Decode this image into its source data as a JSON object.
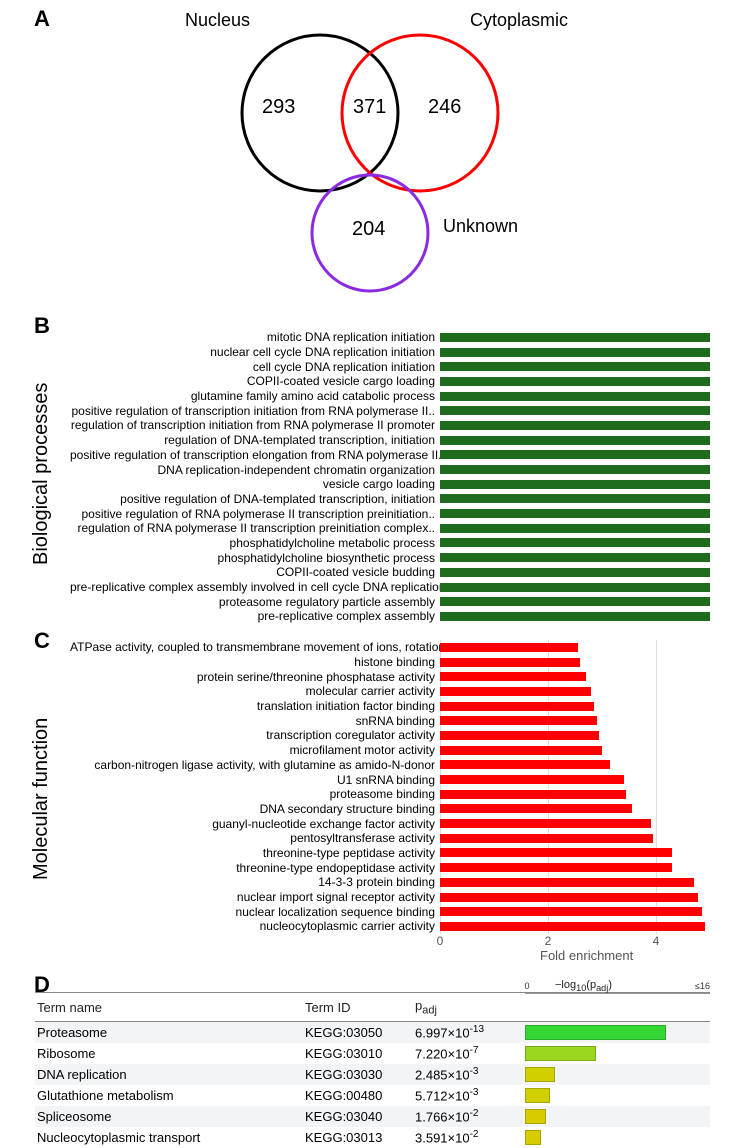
{
  "panelA": {
    "label": "A",
    "circles": {
      "nucleus": {
        "label": "Nucleus",
        "count": 293,
        "stroke": "#000000"
      },
      "cytoplasmic": {
        "label": "Cytoplasmic",
        "count": 246,
        "stroke": "#ff0000"
      },
      "unknown": {
        "label": "Unknown",
        "count": 204,
        "stroke": "#8a2be2"
      }
    },
    "overlap_nuc_cyto": 371,
    "circle_stroke_width": 3
  },
  "panelB": {
    "label": "B",
    "side_label": "Biological processes",
    "bar_color": "#1e6b1e",
    "x_max": 5.0,
    "items": [
      {
        "label": "mitotic DNA replication initiation",
        "value": 5.0
      },
      {
        "label": "nuclear cell cycle DNA replication initiation",
        "value": 5.0
      },
      {
        "label": "cell cycle DNA replication initiation",
        "value": 5.0
      },
      {
        "label": "COPII-coated vesicle cargo loading",
        "value": 5.0
      },
      {
        "label": "glutamine family amino acid catabolic process",
        "value": 5.0
      },
      {
        "label": "positive regulation of transcription initiation from RNA polymerase II..",
        "value": 5.0
      },
      {
        "label": "regulation of transcription initiation from RNA polymerase II promoter",
        "value": 5.0
      },
      {
        "label": "regulation of DNA-templated transcription, initiation",
        "value": 5.0
      },
      {
        "label": "positive regulation of transcription elongation from RNA polymerase II..",
        "value": 5.0
      },
      {
        "label": "DNA replication-independent chromatin organization",
        "value": 5.0
      },
      {
        "label": "vesicle cargo loading",
        "value": 5.0
      },
      {
        "label": "positive regulation of DNA-templated transcription, initiation",
        "value": 5.0
      },
      {
        "label": "positive regulation of RNA polymerase II transcription preinitiation..",
        "value": 5.0
      },
      {
        "label": "regulation of RNA polymerase II transcription preinitiation complex..",
        "value": 5.0
      },
      {
        "label": "phosphatidylcholine metabolic process",
        "value": 5.0
      },
      {
        "label": "phosphatidylcholine biosynthetic process",
        "value": 5.0
      },
      {
        "label": "COPII-coated vesicle budding",
        "value": 5.0
      },
      {
        "label": "pre-replicative complex assembly involved in cell cycle DNA replication",
        "value": 5.0
      },
      {
        "label": "proteasome regulatory particle assembly",
        "value": 5.0
      },
      {
        "label": "pre-replicative complex assembly",
        "value": 5.0
      }
    ]
  },
  "panelC": {
    "label": "C",
    "side_label": "Molecular function",
    "bar_color": "#ff0000",
    "x_max": 5.0,
    "x_ticks": [
      0,
      2,
      4
    ],
    "x_title": "Fold enrichment",
    "items": [
      {
        "label": "ATPase activity, coupled to transmembrane movement of ions, rotational..",
        "value": 2.55
      },
      {
        "label": "histone binding",
        "value": 2.6
      },
      {
        "label": "protein serine/threonine phosphatase activity",
        "value": 2.7
      },
      {
        "label": "molecular carrier activity",
        "value": 2.8
      },
      {
        "label": "translation initiation factor binding",
        "value": 2.85
      },
      {
        "label": "snRNA binding",
        "value": 2.9
      },
      {
        "label": "transcription coregulator activity",
        "value": 2.95
      },
      {
        "label": "microfilament motor activity",
        "value": 3.0
      },
      {
        "label": "carbon-nitrogen ligase activity, with glutamine as amido-N-donor",
        "value": 3.15
      },
      {
        "label": "U1 snRNA binding",
        "value": 3.4
      },
      {
        "label": "proteasome binding",
        "value": 3.45
      },
      {
        "label": "DNA secondary structure binding",
        "value": 3.55
      },
      {
        "label": "guanyl-nucleotide exchange factor activity",
        "value": 3.9
      },
      {
        "label": "pentosyltransferase activity",
        "value": 3.95
      },
      {
        "label": "threonine-type peptidase activity",
        "value": 4.3
      },
      {
        "label": "threonine-type endopeptidase activity",
        "value": 4.3
      },
      {
        "label": "14-3-3 protein binding",
        "value": 4.7
      },
      {
        "label": "nuclear import signal receptor activity",
        "value": 4.78
      },
      {
        "label": "nuclear localization sequence binding",
        "value": 4.85
      },
      {
        "label": "nucleocytoplasmic carrier activity",
        "value": 4.9
      }
    ]
  },
  "panelD": {
    "label": "D",
    "headers": {
      "term": "Term name",
      "id": "Term ID",
      "padj": "p",
      "padj_sub": "adj",
      "log": "−log",
      "log_sub": "10",
      "log_rest": "(p",
      "log_rest_sub": "adj",
      "log_end": ")"
    },
    "log_max": 16,
    "log_tick0": "0",
    "log_tick_end": "≤16",
    "rows": [
      {
        "term": "Proteasome",
        "id": "KEGG:03050",
        "padj_m": "6.997",
        "padj_e": "-13",
        "log": 12.2,
        "color": "#34d634"
      },
      {
        "term": "Ribosome",
        "id": "KEGG:03010",
        "padj_m": "7.220",
        "padj_e": "-7",
        "log": 6.1,
        "color": "#9ad61e"
      },
      {
        "term": "DNA replication",
        "id": "KEGG:03030",
        "padj_m": "2.485",
        "padj_e": "-3",
        "log": 2.6,
        "color": "#d0d000"
      },
      {
        "term": "Glutathione metabolism",
        "id": "KEGG:00480",
        "padj_m": "5.712",
        "padj_e": "-3",
        "log": 2.2,
        "color": "#d0d000"
      },
      {
        "term": "Spliceosome",
        "id": "KEGG:03040",
        "padj_m": "1.766",
        "padj_e": "-2",
        "log": 1.8,
        "color": "#d6cc00"
      },
      {
        "term": "Nucleocytoplasmic transport",
        "id": "KEGG:03013",
        "padj_m": "3.591",
        "padj_e": "-2",
        "log": 1.4,
        "color": "#d6cc00"
      }
    ]
  }
}
